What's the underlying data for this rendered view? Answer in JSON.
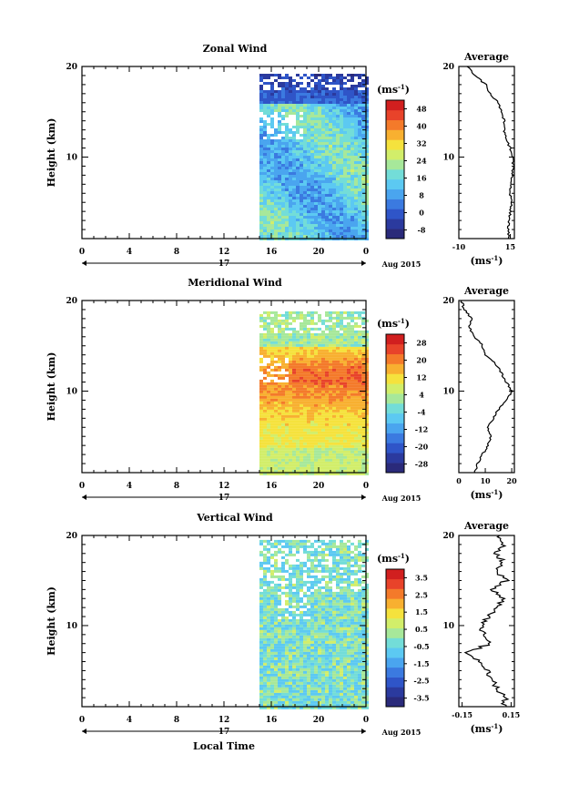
{
  "chart_data": [
    {
      "type": "heatmap",
      "title": "Zonal Wind",
      "ylabel": "Height (km)",
      "xlabel": "",
      "x_ticks": [
        "0",
        "4",
        "8",
        "12",
        "16",
        "20",
        "0"
      ],
      "y_ticks": [
        "10",
        "20"
      ],
      "xlim": [
        0,
        24
      ],
      "ylim": [
        1,
        20
      ],
      "data_x_range": [
        15,
        24
      ],
      "date_label": "17",
      "month_label": "Aug 2015",
      "colorbar": {
        "unit": "(ms-1)",
        "ticks": [
          "-8",
          "0",
          "8",
          "16",
          "24",
          "32",
          "40",
          "48"
        ],
        "range": [
          -12,
          52
        ],
        "colors": [
          "#2a2a7a",
          "#2b3a9e",
          "#2f55c8",
          "#3b7ae0",
          "#4aa5ef",
          "#5cc9f2",
          "#73ddd8",
          "#a7e89a",
          "#d2ee6a",
          "#f5e23d",
          "#f8b030",
          "#f47a2a",
          "#e8432a",
          "#d11f1f"
        ]
      },
      "profile": {
        "title": "Average",
        "xlabel": "(ms-1)",
        "x_ticks": [
          "-10",
          "15"
        ],
        "y_ticks": [
          "10",
          "20"
        ],
        "xlim": [
          -10,
          17
        ],
        "ylim": [
          1,
          20
        ],
        "points": [
          [
            14,
            1
          ],
          [
            14,
            2
          ],
          [
            14.5,
            3
          ],
          [
            15,
            4
          ],
          [
            15.5,
            5
          ],
          [
            15,
            6
          ],
          [
            15.5,
            7
          ],
          [
            16,
            8
          ],
          [
            16.5,
            9
          ],
          [
            16,
            10
          ],
          [
            15,
            11
          ],
          [
            13,
            12
          ],
          [
            12,
            13
          ],
          [
            12,
            14
          ],
          [
            11,
            15
          ],
          [
            9,
            16
          ],
          [
            5,
            17
          ],
          [
            3,
            18
          ],
          [
            -2,
            19
          ],
          [
            -6,
            20
          ]
        ]
      }
    },
    {
      "type": "heatmap",
      "title": "Meridional Wind",
      "ylabel": "Height (km)",
      "xlabel": "",
      "x_ticks": [
        "0",
        "4",
        "8",
        "12",
        "16",
        "20",
        "0"
      ],
      "y_ticks": [
        "10",
        "20"
      ],
      "xlim": [
        0,
        24
      ],
      "ylim": [
        1,
        20
      ],
      "data_x_range": [
        15,
        24
      ],
      "date_label": "17",
      "month_label": "Aug 2015",
      "colorbar": {
        "unit": "(ms-1)",
        "ticks": [
          "-28",
          "-20",
          "-12",
          "-4",
          "4",
          "12",
          "20",
          "28"
        ],
        "range": [
          -32,
          32
        ],
        "colors": [
          "#2a2a7a",
          "#2b3a9e",
          "#2f55c8",
          "#3b7ae0",
          "#4aa5ef",
          "#5cc9f2",
          "#73ddd8",
          "#a7e89a",
          "#d2ee6a",
          "#f5e23d",
          "#f8b030",
          "#f47a2a",
          "#e8432a",
          "#d11f1f"
        ]
      },
      "profile": {
        "title": "Average",
        "xlabel": "(ms-1)",
        "x_ticks": [
          "0",
          "10",
          "20"
        ],
        "y_ticks": [
          "10",
          "20"
        ],
        "xlim": [
          0,
          21
        ],
        "ylim": [
          1,
          20
        ],
        "points": [
          [
            6,
            1
          ],
          [
            7,
            2
          ],
          [
            9,
            3
          ],
          [
            11,
            4
          ],
          [
            12,
            5
          ],
          [
            11,
            6
          ],
          [
            13,
            7
          ],
          [
            15,
            8
          ],
          [
            18,
            9
          ],
          [
            20,
            10
          ],
          [
            18,
            11
          ],
          [
            16,
            12
          ],
          [
            14,
            13
          ],
          [
            10,
            14
          ],
          [
            9,
            15
          ],
          [
            6,
            16
          ],
          [
            4,
            17
          ],
          [
            5,
            18
          ],
          [
            2,
            19
          ],
          [
            1,
            20
          ]
        ]
      }
    },
    {
      "type": "heatmap",
      "title": "Vertical Wind",
      "ylabel": "Height (km)",
      "xlabel": "Local Time",
      "x_ticks": [
        "0",
        "4",
        "8",
        "12",
        "16",
        "20",
        "0"
      ],
      "y_ticks": [
        "10",
        "20"
      ],
      "xlim": [
        0,
        24
      ],
      "ylim": [
        1,
        20
      ],
      "data_x_range": [
        15,
        24
      ],
      "date_label": "17",
      "month_label": "Aug 2015",
      "colorbar": {
        "unit": "(ms-1)",
        "ticks": [
          "-3.5",
          "-2.5",
          "-1.5",
          "-0.5",
          "0.5",
          "1.5",
          "2.5",
          "3.5"
        ],
        "range": [
          -4,
          4
        ],
        "colors": [
          "#2a2a7a",
          "#2b3a9e",
          "#2f55c8",
          "#3b7ae0",
          "#4aa5ef",
          "#5cc9f2",
          "#73ddd8",
          "#a7e89a",
          "#d2ee6a",
          "#f5e23d",
          "#f8b030",
          "#f47a2a",
          "#e8432a",
          "#d11f1f"
        ]
      },
      "profile": {
        "title": "Average",
        "xlabel": "(ms-1)",
        "x_ticks": [
          "-0.15",
          "0.15"
        ],
        "y_ticks": [
          "10",
          "20"
        ],
        "xlim": [
          -0.17,
          0.17
        ],
        "ylim": [
          1,
          20
        ],
        "points": [
          [
            0.1,
            1
          ],
          [
            0.12,
            2
          ],
          [
            0.06,
            3
          ],
          [
            0.03,
            4
          ],
          [
            0.0,
            5
          ],
          [
            -0.05,
            6
          ],
          [
            -0.12,
            7
          ],
          [
            0.02,
            8
          ],
          [
            -0.02,
            9
          ],
          [
            -0.04,
            10
          ],
          [
            0.02,
            11
          ],
          [
            0.06,
            12
          ],
          [
            0.1,
            13
          ],
          [
            0.04,
            14
          ],
          [
            0.12,
            15
          ],
          [
            0.05,
            16
          ],
          [
            0.1,
            17
          ],
          [
            0.06,
            18
          ],
          [
            0.1,
            19
          ],
          [
            0.08,
            20
          ]
        ]
      }
    }
  ]
}
